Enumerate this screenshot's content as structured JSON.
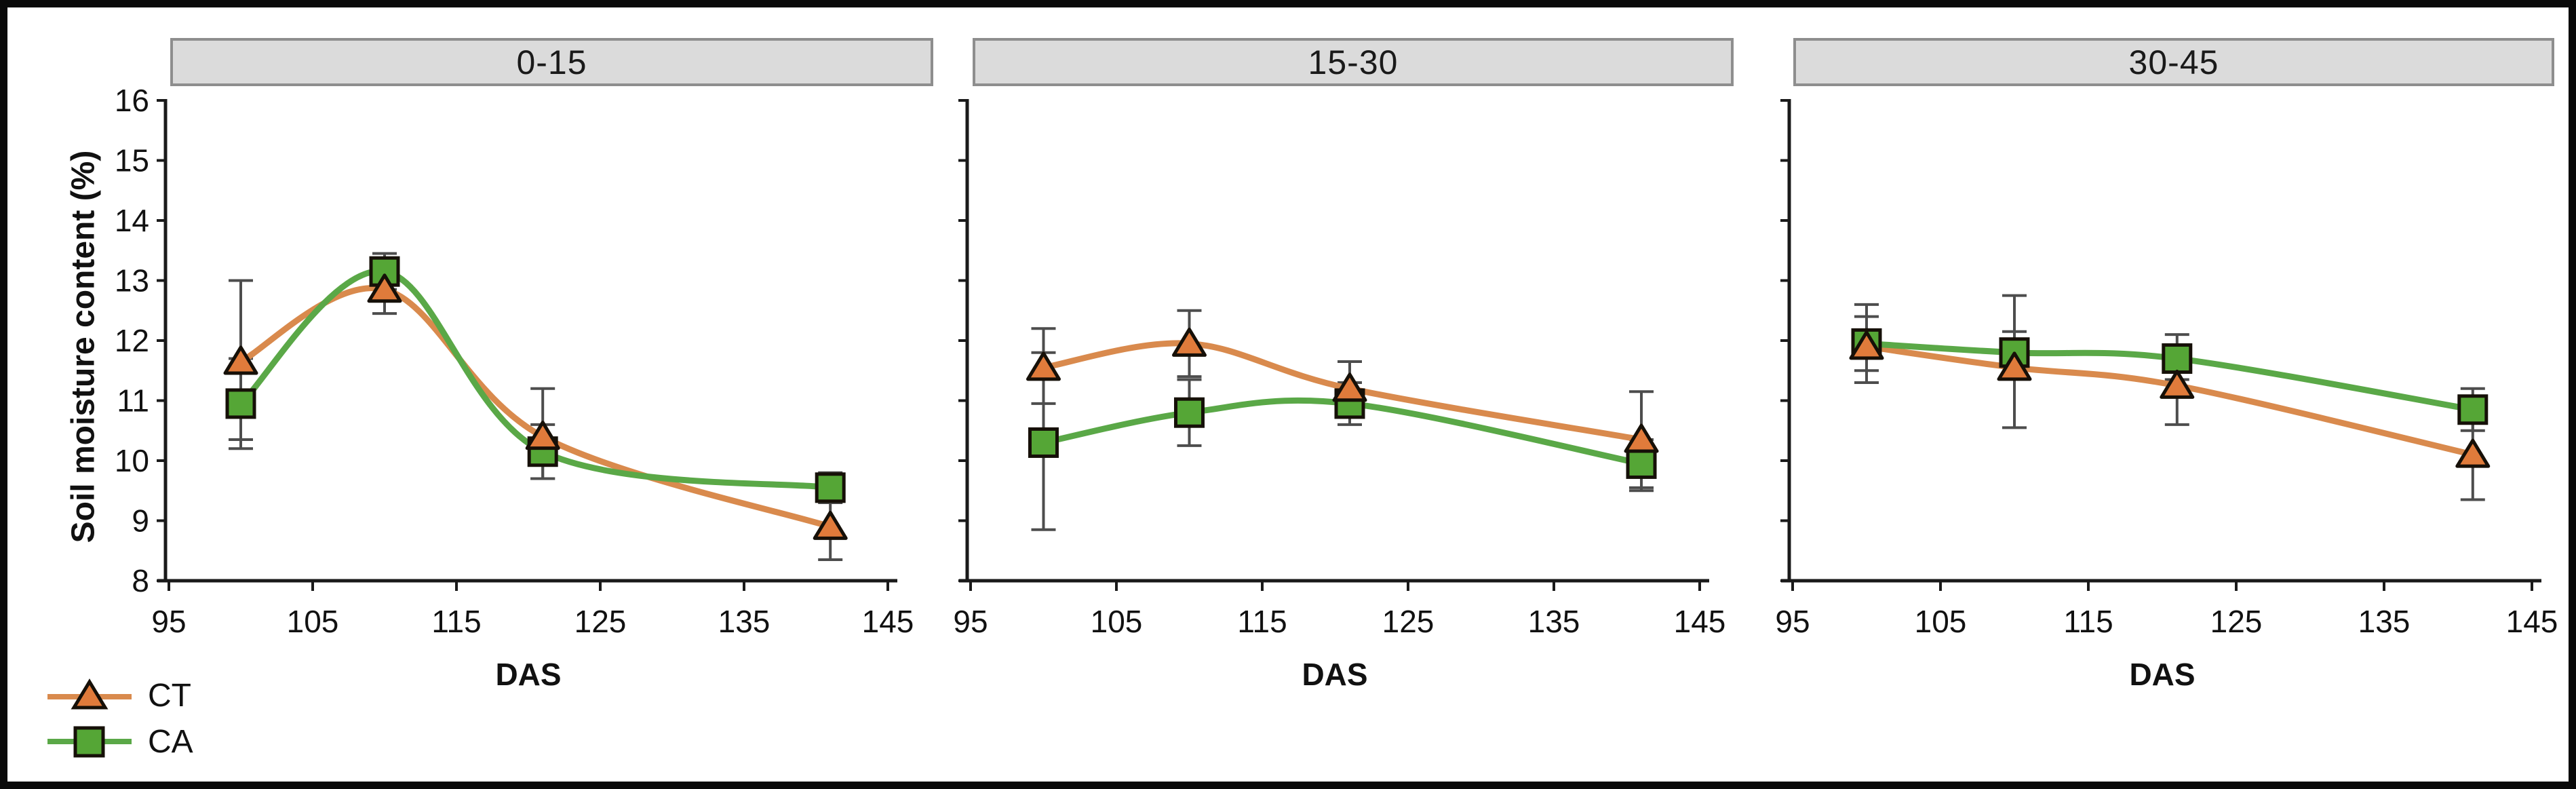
{
  "figure": {
    "kind": "faceted line chart with error bars",
    "facet_titles": [
      "0-15",
      "15-30",
      "30-45"
    ]
  },
  "axes": {
    "x_label": "DAS",
    "y_label": "Soil moisture content (%)",
    "xlim": [
      95,
      145
    ],
    "ylim": [
      8,
      16
    ],
    "x_ticks": [
      95,
      105,
      115,
      125,
      135,
      145
    ],
    "y_ticks": [
      8,
      9,
      10,
      11,
      12,
      13,
      14,
      15,
      16
    ]
  },
  "legend": {
    "items": [
      {
        "label": "CT",
        "marker": "triangle-icon",
        "line_color": "#d98a4d",
        "fill_color": "#e07b3b",
        "outline_color": "#1a1208"
      },
      {
        "label": "CA",
        "marker": "square-icon",
        "line_color": "#5aa847",
        "fill_color": "#55a636",
        "outline_color": "#0f1c08"
      }
    ]
  },
  "colors": {
    "background": "#ffffff",
    "outer_border": "#0a0a0a",
    "header_bg": "#dbdbdb",
    "header_border": "#8e8e8e",
    "axis": "#1a1a1a",
    "error_bar": "#4d4d4d",
    "ct_line": "#d98a4d",
    "ct_fill": "#e07b3b",
    "ca_line": "#5aa847",
    "ca_fill": "#55a636"
  },
  "chart_data": [
    {
      "type": "line",
      "title": "0-15",
      "xlabel": "DAS",
      "ylabel": "Soil moisture content (%)",
      "xlim": [
        95,
        145
      ],
      "ylim": [
        8,
        16
      ],
      "x_ticks": [
        95,
        105,
        115,
        125,
        135,
        145
      ],
      "y_ticks": [
        8,
        9,
        10,
        11,
        12,
        13,
        14,
        15,
        16
      ],
      "y_tick_labels_visible": true,
      "x": [
        100,
        110,
        121,
        141
      ],
      "series": [
        {
          "name": "CT",
          "marker": "triangle",
          "values": [
            11.65,
            12.85,
            10.4,
            8.9
          ],
          "err_low": [
            10.35,
            12.45,
            9.7,
            8.35
          ],
          "err_high": [
            13.0,
            13.1,
            11.2,
            9.4
          ]
        },
        {
          "name": "CA",
          "marker": "square",
          "values": [
            10.95,
            13.15,
            10.15,
            9.55
          ],
          "err_low": [
            10.2,
            12.85,
            9.7,
            9.3
          ],
          "err_high": [
            11.7,
            13.45,
            10.6,
            9.8
          ]
        }
      ]
    },
    {
      "type": "line",
      "title": "15-30",
      "xlabel": "DAS",
      "ylabel": "Soil moisture content (%)",
      "xlim": [
        95,
        145
      ],
      "ylim": [
        8,
        16
      ],
      "x_ticks": [
        95,
        105,
        115,
        125,
        135,
        145
      ],
      "y_ticks": [
        8,
        9,
        10,
        11,
        12,
        13,
        14,
        15,
        16
      ],
      "y_tick_labels_visible": false,
      "x": [
        100,
        110,
        121,
        141
      ],
      "series": [
        {
          "name": "CT",
          "marker": "triangle",
          "values": [
            11.55,
            11.95,
            11.2,
            10.35
          ],
          "err_low": [
            10.95,
            11.4,
            10.8,
            9.5
          ],
          "err_high": [
            12.2,
            12.5,
            11.65,
            11.15
          ]
        },
        {
          "name": "CA",
          "marker": "square",
          "values": [
            10.3,
            10.8,
            10.95,
            9.95
          ],
          "err_low": [
            8.85,
            10.25,
            10.6,
            9.55
          ],
          "err_high": [
            11.8,
            11.35,
            11.3,
            10.35
          ]
        }
      ]
    },
    {
      "type": "line",
      "title": "30-45",
      "xlabel": "DAS",
      "ylabel": "Soil moisture content (%)",
      "xlim": [
        95,
        145
      ],
      "ylim": [
        8,
        16
      ],
      "x_ticks": [
        95,
        105,
        115,
        125,
        135,
        145
      ],
      "y_ticks": [
        8,
        9,
        10,
        11,
        12,
        13,
        14,
        15,
        16
      ],
      "y_tick_labels_visible": false,
      "x": [
        100,
        110,
        121,
        141
      ],
      "series": [
        {
          "name": "CT",
          "marker": "triangle",
          "values": [
            11.9,
            11.55,
            11.25,
            10.1
          ],
          "err_low": [
            11.5,
            10.55,
            10.6,
            9.35
          ],
          "err_high": [
            12.4,
            12.75,
            11.8,
            10.8
          ]
        },
        {
          "name": "CA",
          "marker": "square",
          "values": [
            11.95,
            11.8,
            11.7,
            10.85
          ],
          "err_low": [
            11.3,
            11.4,
            11.35,
            10.5
          ],
          "err_high": [
            12.6,
            12.15,
            12.1,
            11.2
          ]
        }
      ]
    }
  ]
}
